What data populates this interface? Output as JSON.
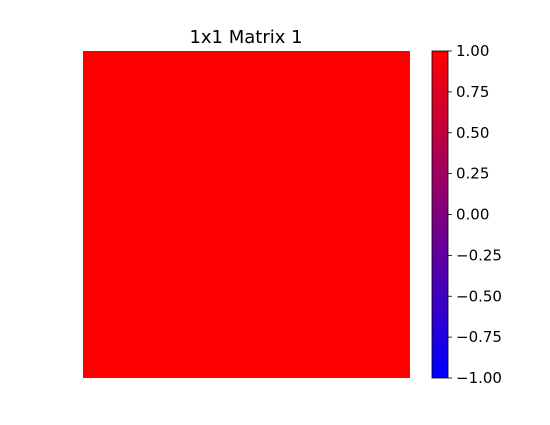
{
  "chart_data": {
    "type": "heatmap",
    "title": "1x1 Matrix 1",
    "xlabel": "",
    "ylabel": "",
    "matrix": [
      [
        1.0
      ]
    ],
    "colorbar": {
      "vmin": -1.0,
      "vmax": 1.0,
      "low_color": "#0000ff",
      "high_color": "#ff0000",
      "ticks": [
        1.0,
        0.75,
        0.5,
        0.25,
        0.0,
        -0.25,
        -0.5,
        -0.75,
        -1.0
      ],
      "tick_labels": [
        "1.00",
        "0.75",
        "0.50",
        "0.25",
        "0.00",
        "−0.25",
        "−0.50",
        "−0.75",
        "−1.00"
      ]
    },
    "axes_visible": false,
    "grid": false
  }
}
